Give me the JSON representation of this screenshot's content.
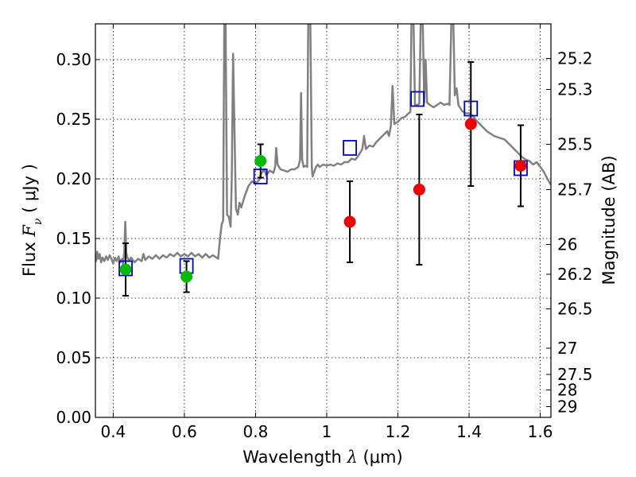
{
  "chart_data": {
    "type": "scatter",
    "xlabel_prefix": "Wavelength  ",
    "xlabel_symbol": "λ",
    "xlabel_unit": " (μm)",
    "ylabel_prefix": "Flux  ",
    "ylabel_symbol": "F",
    "ylabel_sub": "ν",
    "ylabel_unit": "  ( μJy )",
    "y2label": "Magnitude (AB)",
    "xlim": [
      0.35,
      1.63
    ],
    "ylim": [
      0.0,
      0.33
    ],
    "grid": true,
    "x_ticks": [
      0.4,
      0.6,
      0.8,
      1.0,
      1.2,
      1.4,
      1.6
    ],
    "x_tick_labels": [
      "0.4",
      "0.6",
      "0.8",
      "1",
      "1.2",
      "1.4",
      "1.6"
    ],
    "y_ticks": [
      0.0,
      0.05,
      0.1,
      0.15,
      0.2,
      0.25,
      0.3
    ],
    "y_tick_labels": [
      "0.00",
      "0.05",
      "0.10",
      "0.15",
      "0.20",
      "0.25",
      "0.30"
    ],
    "mag_ticks": [
      {
        "label": "25.2",
        "flux": 0.301
      },
      {
        "label": "25.3",
        "flux": 0.275
      },
      {
        "label": "25.5",
        "flux": 0.229
      },
      {
        "label": "25.7",
        "flux": 0.191
      },
      {
        "label": "26",
        "flux": 0.145
      },
      {
        "label": "26.2",
        "flux": 0.12
      },
      {
        "label": "26.5",
        "flux": 0.091
      },
      {
        "label": "27",
        "flux": 0.058
      },
      {
        "label": "27.5",
        "flux": 0.036
      },
      {
        "label": "28",
        "flux": 0.023
      },
      {
        "label": "29",
        "flux": 0.009
      }
    ],
    "series": [
      {
        "marker": "open-square",
        "color": "#0000cc",
        "points": [
          {
            "x": 0.435,
            "y": 0.125
          },
          {
            "x": 0.606,
            "y": 0.127
          },
          {
            "x": 0.814,
            "y": 0.202
          },
          {
            "x": 1.065,
            "y": 0.226
          },
          {
            "x": 1.255,
            "y": 0.267
          },
          {
            "x": 1.405,
            "y": 0.259
          },
          {
            "x": 1.545,
            "y": 0.209
          }
        ]
      },
      {
        "marker": "filled-circle",
        "color": "#00bb00",
        "points": [
          {
            "x": 0.435,
            "y": 0.124,
            "err": 0.022
          },
          {
            "x": 0.606,
            "y": 0.118,
            "err": 0.013
          },
          {
            "x": 0.814,
            "y": 0.215,
            "err": 0.014
          }
        ]
      },
      {
        "marker": "filled-circle",
        "color": "#ee0000",
        "points": [
          {
            "x": 1.065,
            "y": 0.164,
            "err": 0.034
          },
          {
            "x": 1.26,
            "y": 0.191,
            "err": 0.063
          },
          {
            "x": 1.405,
            "y": 0.246,
            "err": 0.052
          },
          {
            "x": 1.545,
            "y": 0.211,
            "err": 0.034
          }
        ]
      }
    ],
    "spectrum": {
      "color": "#808080",
      "points": [
        [
          0.35,
          0.136
        ],
        [
          0.352,
          0.131
        ],
        [
          0.355,
          0.139
        ],
        [
          0.358,
          0.133
        ],
        [
          0.362,
          0.137
        ],
        [
          0.366,
          0.13
        ],
        [
          0.37,
          0.134
        ],
        [
          0.375,
          0.131
        ],
        [
          0.38,
          0.135
        ],
        [
          0.385,
          0.132
        ],
        [
          0.39,
          0.136
        ],
        [
          0.395,
          0.133
        ],
        [
          0.4,
          0.129
        ],
        [
          0.405,
          0.134
        ],
        [
          0.41,
          0.131
        ],
        [
          0.415,
          0.135
        ],
        [
          0.42,
          0.13
        ],
        [
          0.425,
          0.133
        ],
        [
          0.428,
          0.128
        ],
        [
          0.431,
          0.139
        ],
        [
          0.434,
          0.164
        ],
        [
          0.437,
          0.138
        ],
        [
          0.44,
          0.134
        ],
        [
          0.445,
          0.131
        ],
        [
          0.45,
          0.134
        ],
        [
          0.46,
          0.13
        ],
        [
          0.47,
          0.133
        ],
        [
          0.48,
          0.131
        ],
        [
          0.485,
          0.137
        ],
        [
          0.49,
          0.132
        ],
        [
          0.5,
          0.135
        ],
        [
          0.51,
          0.133
        ],
        [
          0.52,
          0.136
        ],
        [
          0.53,
          0.133
        ],
        [
          0.54,
          0.136
        ],
        [
          0.55,
          0.134
        ],
        [
          0.56,
          0.137
        ],
        [
          0.57,
          0.135
        ],
        [
          0.58,
          0.138
        ],
        [
          0.59,
          0.135
        ],
        [
          0.6,
          0.137
        ],
        [
          0.61,
          0.135
        ],
        [
          0.62,
          0.138
        ],
        [
          0.63,
          0.135
        ],
        [
          0.64,
          0.137
        ],
        [
          0.65,
          0.134
        ],
        [
          0.66,
          0.137
        ],
        [
          0.67,
          0.134
        ],
        [
          0.68,
          0.136
        ],
        [
          0.69,
          0.134
        ],
        [
          0.695,
          0.133
        ],
        [
          0.7,
          0.15
        ],
        [
          0.705,
          0.162
        ],
        [
          0.709,
          0.165
        ],
        [
          0.712,
          0.33
        ],
        [
          0.716,
          0.33
        ],
        [
          0.72,
          0.17
        ],
        [
          0.725,
          0.168
        ],
        [
          0.73,
          0.16
        ],
        [
          0.733,
          0.2
        ],
        [
          0.737,
          0.305
        ],
        [
          0.742,
          0.22
        ],
        [
          0.745,
          0.175
        ],
        [
          0.75,
          0.17
        ],
        [
          0.755,
          0.18
        ],
        [
          0.76,
          0.176
        ],
        [
          0.77,
          0.186
        ],
        [
          0.78,
          0.194
        ],
        [
          0.79,
          0.198
        ],
        [
          0.8,
          0.196
        ],
        [
          0.81,
          0.199
        ],
        [
          0.815,
          0.204
        ],
        [
          0.82,
          0.206
        ],
        [
          0.825,
          0.208
        ],
        [
          0.83,
          0.203
        ],
        [
          0.84,
          0.207
        ],
        [
          0.85,
          0.205
        ],
        [
          0.855,
          0.21
        ],
        [
          0.858,
          0.226
        ],
        [
          0.862,
          0.212
        ],
        [
          0.87,
          0.208
        ],
        [
          0.88,
          0.207
        ],
        [
          0.89,
          0.206
        ],
        [
          0.9,
          0.208
        ],
        [
          0.91,
          0.208
        ],
        [
          0.92,
          0.21
        ],
        [
          0.925,
          0.216
        ],
        [
          0.928,
          0.272
        ],
        [
          0.931,
          0.216
        ],
        [
          0.935,
          0.21
        ],
        [
          0.94,
          0.211
        ],
        [
          0.945,
          0.21
        ],
        [
          0.948,
          0.33
        ],
        [
          0.954,
          0.33
        ],
        [
          0.958,
          0.21
        ],
        [
          0.96,
          0.202
        ],
        [
          0.965,
          0.206
        ],
        [
          0.97,
          0.21
        ],
        [
          0.975,
          0.212
        ],
        [
          0.98,
          0.21
        ],
        [
          0.99,
          0.212
        ],
        [
          1.0,
          0.211
        ],
        [
          1.01,
          0.212
        ],
        [
          1.02,
          0.211
        ],
        [
          1.03,
          0.213
        ],
        [
          1.04,
          0.212
        ],
        [
          1.05,
          0.214
        ],
        [
          1.06,
          0.214
        ],
        [
          1.07,
          0.217
        ],
        [
          1.08,
          0.216
        ],
        [
          1.09,
          0.22
        ],
        [
          1.1,
          0.225
        ],
        [
          1.105,
          0.236
        ],
        [
          1.11,
          0.225
        ],
        [
          1.12,
          0.228
        ],
        [
          1.13,
          0.227
        ],
        [
          1.14,
          0.231
        ],
        [
          1.15,
          0.234
        ],
        [
          1.16,
          0.237
        ],
        [
          1.17,
          0.24
        ],
        [
          1.175,
          0.236
        ],
        [
          1.18,
          0.244
        ],
        [
          1.185,
          0.278
        ],
        [
          1.19,
          0.246
        ],
        [
          1.2,
          0.248
        ],
        [
          1.21,
          0.251
        ],
        [
          1.22,
          0.252
        ],
        [
          1.23,
          0.255
        ],
        [
          1.235,
          0.256
        ],
        [
          1.238,
          0.33
        ],
        [
          1.244,
          0.33
        ],
        [
          1.248,
          0.262
        ],
        [
          1.255,
          0.262
        ],
        [
          1.26,
          0.263
        ],
        [
          1.264,
          0.33
        ],
        [
          1.27,
          0.33
        ],
        [
          1.274,
          0.264
        ],
        [
          1.278,
          0.3
        ],
        [
          1.282,
          0.264
        ],
        [
          1.29,
          0.262
        ],
        [
          1.3,
          0.26
        ],
        [
          1.31,
          0.262
        ],
        [
          1.32,
          0.264
        ],
        [
          1.33,
          0.262
        ],
        [
          1.34,
          0.263
        ],
        [
          1.345,
          0.262
        ],
        [
          1.35,
          0.33
        ],
        [
          1.356,
          0.33
        ],
        [
          1.36,
          0.27
        ],
        [
          1.365,
          0.276
        ],
        [
          1.37,
          0.262
        ],
        [
          1.38,
          0.257
        ],
        [
          1.39,
          0.255
        ],
        [
          1.4,
          0.255
        ],
        [
          1.41,
          0.253
        ],
        [
          1.42,
          0.249
        ],
        [
          1.43,
          0.246
        ],
        [
          1.44,
          0.243
        ],
        [
          1.45,
          0.24
        ],
        [
          1.46,
          0.238
        ],
        [
          1.47,
          0.236
        ],
        [
          1.48,
          0.235
        ],
        [
          1.49,
          0.234
        ],
        [
          1.5,
          0.233
        ],
        [
          1.51,
          0.23
        ],
        [
          1.52,
          0.227
        ],
        [
          1.53,
          0.224
        ],
        [
          1.54,
          0.221
        ],
        [
          1.55,
          0.218
        ],
        [
          1.56,
          0.216
        ],
        [
          1.57,
          0.215
        ],
        [
          1.58,
          0.212
        ],
        [
          1.59,
          0.214
        ],
        [
          1.6,
          0.21
        ],
        [
          1.61,
          0.206
        ],
        [
          1.62,
          0.2
        ],
        [
          1.63,
          0.195
        ]
      ]
    }
  }
}
